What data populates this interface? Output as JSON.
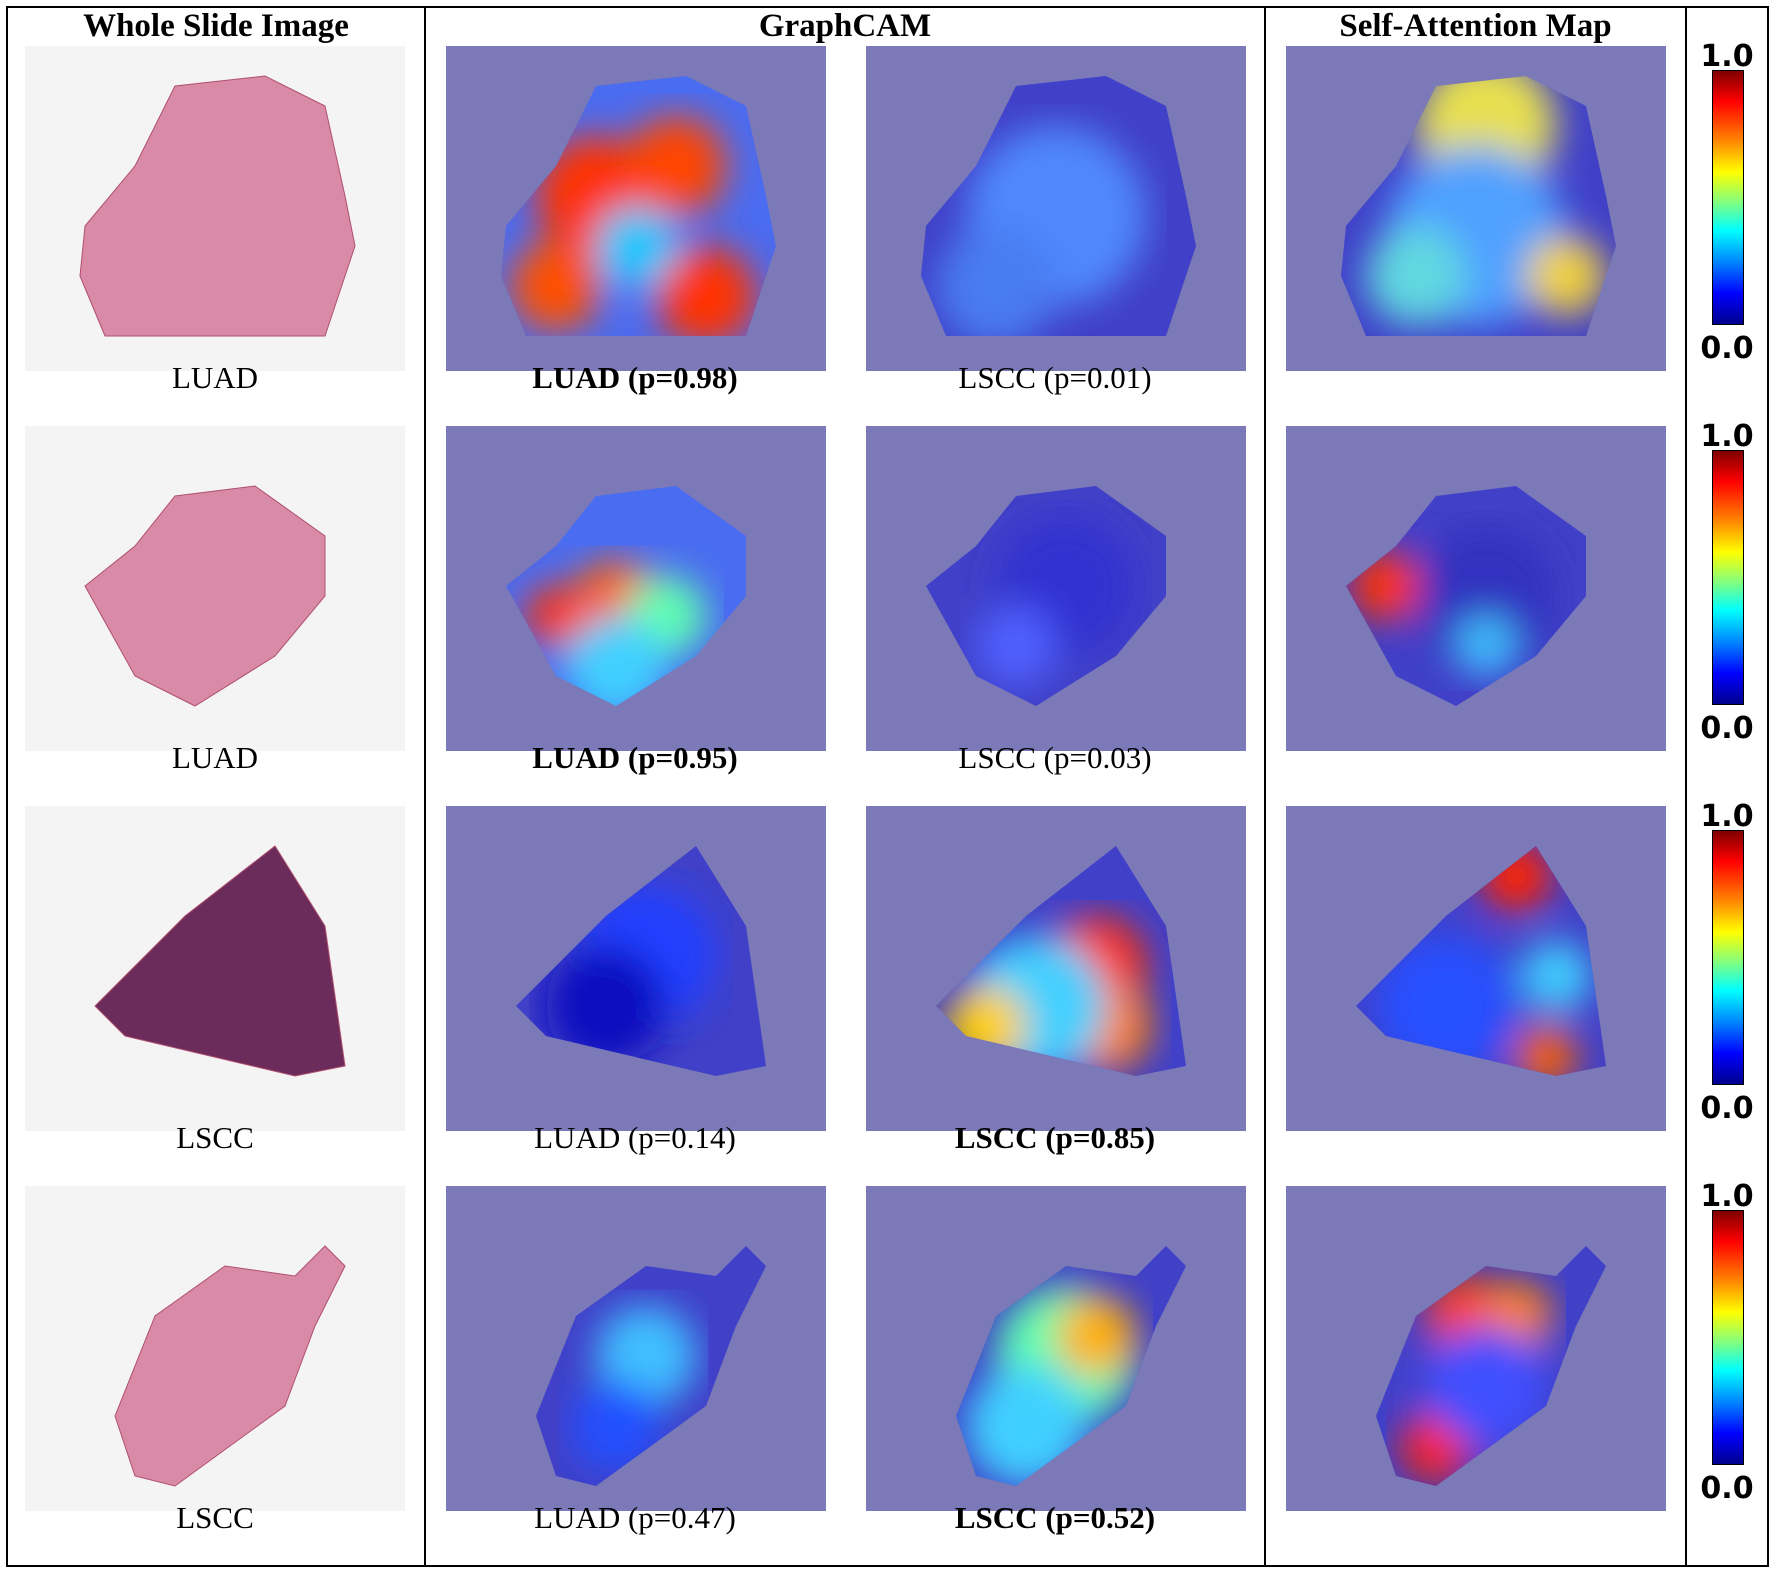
{
  "headers": {
    "wsi": "Whole Slide Image",
    "graphcam": "GraphCAM",
    "attention": "Self-Attention Map"
  },
  "colorbar": {
    "max_label": "1.0",
    "min_label": "0.0"
  },
  "colors": {
    "overlay_background": "#7b79b8",
    "tissue_pink": "#d98aa6",
    "tissue_purple": "#6b2c5c"
  },
  "rows": [
    {
      "label": "LUAD",
      "luad_caption": {
        "class": "LUAD",
        "prob": "(p=0.98)",
        "bold": true
      },
      "lscc_caption": {
        "class": "LSCC",
        "prob": "(p=0.01)",
        "bold": false
      },
      "tissue": "pink"
    },
    {
      "label": "LUAD",
      "luad_caption": {
        "class": "LUAD",
        "prob": "(p=0.95)",
        "bold": true
      },
      "lscc_caption": {
        "class": "LSCC",
        "prob": "(p=0.03)",
        "bold": false
      },
      "tissue": "pink"
    },
    {
      "label": "LSCC",
      "luad_caption": {
        "class": "LUAD",
        "prob": "(p=0.14)",
        "bold": false
      },
      "lscc_caption": {
        "class": "LSCC",
        "prob": "(p=0.85)",
        "bold": true
      },
      "tissue": "purple"
    },
    {
      "label": "LSCC",
      "luad_caption": {
        "class": "LUAD",
        "prob": "(p=0.47)",
        "bold": false
      },
      "lscc_caption": {
        "class": "LSCC",
        "prob": "(p=0.52)",
        "bold": true
      },
      "tissue": "pink"
    }
  ]
}
